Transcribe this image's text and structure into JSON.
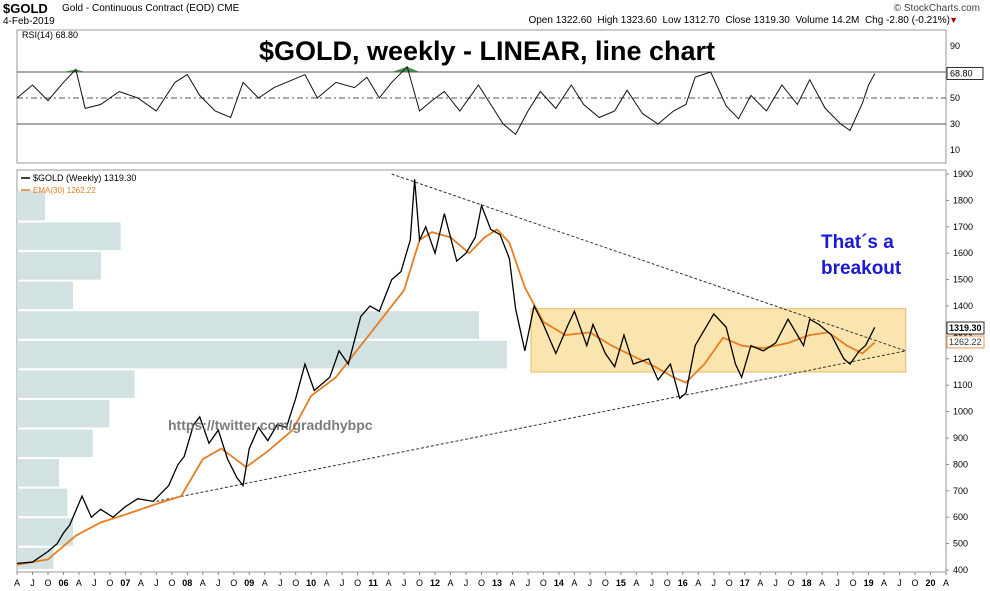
{
  "header": {
    "symbol": "$GOLD",
    "description": "Gold - Continuous Contract (EOD)",
    "exchange": "CME",
    "date": "4-Feb-2019",
    "brand": "© StockCharts.com",
    "open_label": "Open",
    "open": "1322.60",
    "high_label": "High",
    "high": "1323.60",
    "low_label": "Low",
    "low": "1312.70",
    "close_label": "Close",
    "close": "1319.30",
    "volume_label": "Volume",
    "volume": "14.2M",
    "chg_label": "Chg",
    "chg": "-2.80 (-0.21%)"
  },
  "chart_data": {
    "type": "line",
    "title": "$GOLD, weekly - LINEAR, line chart",
    "annotation_breakout": [
      "That´s a",
      "breakout"
    ],
    "watermark": "https://twitter.com/graddhybpc",
    "colors": {
      "price": "#000000",
      "ema": "#e67e22",
      "box": "#fbe3a6",
      "volume_by_price": "#d2e1e1",
      "breakout_text": "#1a1ad4",
      "rsi_fill": "#2e7d32",
      "trendline": "#333333"
    },
    "x_axis": {
      "months": [
        "A",
        "J",
        "O",
        "06",
        "A",
        "J",
        "O",
        "07",
        "A",
        "J",
        "O",
        "08",
        "A",
        "J",
        "O",
        "09",
        "A",
        "J",
        "O",
        "10",
        "A",
        "J",
        "O",
        "11",
        "A",
        "J",
        "O",
        "12",
        "A",
        "J",
        "O",
        "13",
        "A",
        "J",
        "O",
        "14",
        "A",
        "J",
        "O",
        "15",
        "A",
        "J",
        "O",
        "16",
        "A",
        "J",
        "O",
        "17",
        "A",
        "J",
        "O",
        "18",
        "A",
        "J",
        "O",
        "19",
        "A",
        "J",
        "O",
        "20",
        "A"
      ],
      "range": [
        2005.25,
        2020.25
      ]
    },
    "rsi": {
      "label": "RSI(14)",
      "value": "68.80",
      "ylim": [
        0,
        100
      ],
      "ticks": [
        "90",
        "70",
        "50",
        "30",
        "10"
      ],
      "reference_lines": [
        70,
        50,
        30
      ],
      "points": [
        [
          2005.25,
          50
        ],
        [
          2005.5,
          60
        ],
        [
          2005.75,
          48
        ],
        [
          2006.0,
          62
        ],
        [
          2006.2,
          72
        ],
        [
          2006.35,
          42
        ],
        [
          2006.6,
          45
        ],
        [
          2006.9,
          55
        ],
        [
          2007.2,
          50
        ],
        [
          2007.5,
          40
        ],
        [
          2007.8,
          62
        ],
        [
          2008.0,
          68
        ],
        [
          2008.2,
          52
        ],
        [
          2008.45,
          40
        ],
        [
          2008.7,
          35
        ],
        [
          2008.9,
          62
        ],
        [
          2009.15,
          50
        ],
        [
          2009.4,
          58
        ],
        [
          2009.7,
          64
        ],
        [
          2009.9,
          68
        ],
        [
          2010.1,
          50
        ],
        [
          2010.4,
          62
        ],
        [
          2010.7,
          58
        ],
        [
          2010.9,
          66
        ],
        [
          2011.1,
          50
        ],
        [
          2011.3,
          62
        ],
        [
          2011.55,
          74
        ],
        [
          2011.75,
          40
        ],
        [
          2011.95,
          48
        ],
        [
          2012.15,
          55
        ],
        [
          2012.4,
          40
        ],
        [
          2012.7,
          60
        ],
        [
          2012.9,
          45
        ],
        [
          2013.1,
          30
        ],
        [
          2013.3,
          22
        ],
        [
          2013.5,
          40
        ],
        [
          2013.7,
          55
        ],
        [
          2013.95,
          42
        ],
        [
          2014.2,
          60
        ],
        [
          2014.4,
          45
        ],
        [
          2014.65,
          35
        ],
        [
          2014.9,
          40
        ],
        [
          2015.1,
          56
        ],
        [
          2015.35,
          38
        ],
        [
          2015.6,
          30
        ],
        [
          2015.85,
          40
        ],
        [
          2016.05,
          45
        ],
        [
          2016.2,
          66
        ],
        [
          2016.45,
          70
        ],
        [
          2016.7,
          44
        ],
        [
          2016.9,
          34
        ],
        [
          2017.1,
          52
        ],
        [
          2017.35,
          40
        ],
        [
          2017.6,
          60
        ],
        [
          2017.85,
          45
        ],
        [
          2018.05,
          64
        ],
        [
          2018.3,
          42
        ],
        [
          2018.55,
          30
        ],
        [
          2018.7,
          25
        ],
        [
          2018.9,
          46
        ],
        [
          2019.0,
          60
        ],
        [
          2019.1,
          68.8
        ]
      ]
    },
    "price": {
      "series_label": "$GOLD (Weekly)",
      "value": "1319.30",
      "ema_label": "EMA(30)",
      "ema_value": "1262.22",
      "last_price": "1319.30",
      "last_ema": "1262.22",
      "ylim": [
        400,
        1900
      ],
      "ticks": [
        "1900",
        "1800",
        "1700",
        "1600",
        "1500",
        "1400",
        "1300",
        "1200",
        "1100",
        "1000",
        "900",
        "800",
        "700",
        "600",
        "500",
        "400"
      ],
      "price_points": [
        [
          2005.25,
          425
        ],
        [
          2005.5,
          430
        ],
        [
          2005.75,
          470
        ],
        [
          2005.9,
          500
        ],
        [
          2006.0,
          540
        ],
        [
          2006.1,
          570
        ],
        [
          2006.3,
          680
        ],
        [
          2006.45,
          600
        ],
        [
          2006.6,
          630
        ],
        [
          2006.8,
          600
        ],
        [
          2007.0,
          640
        ],
        [
          2007.2,
          670
        ],
        [
          2007.45,
          660
        ],
        [
          2007.7,
          720
        ],
        [
          2007.85,
          800
        ],
        [
          2007.95,
          830
        ],
        [
          2008.1,
          950
        ],
        [
          2008.2,
          980
        ],
        [
          2008.35,
          880
        ],
        [
          2008.5,
          930
        ],
        [
          2008.65,
          820
        ],
        [
          2008.8,
          750
        ],
        [
          2008.9,
          720
        ],
        [
          2009.0,
          860
        ],
        [
          2009.15,
          940
        ],
        [
          2009.3,
          890
        ],
        [
          2009.45,
          950
        ],
        [
          2009.6,
          940
        ],
        [
          2009.75,
          1050
        ],
        [
          2009.9,
          1180
        ],
        [
          2010.05,
          1080
        ],
        [
          2010.3,
          1130
        ],
        [
          2010.45,
          1230
        ],
        [
          2010.6,
          1180
        ],
        [
          2010.8,
          1360
        ],
        [
          2010.95,
          1400
        ],
        [
          2011.1,
          1380
        ],
        [
          2011.3,
          1500
        ],
        [
          2011.45,
          1530
        ],
        [
          2011.6,
          1650
        ],
        [
          2011.67,
          1880
        ],
        [
          2011.75,
          1650
        ],
        [
          2011.85,
          1700
        ],
        [
          2012.0,
          1600
        ],
        [
          2012.15,
          1750
        ],
        [
          2012.35,
          1570
        ],
        [
          2012.5,
          1600
        ],
        [
          2012.65,
          1660
        ],
        [
          2012.75,
          1780
        ],
        [
          2012.9,
          1690
        ],
        [
          2013.05,
          1670
        ],
        [
          2013.2,
          1580
        ],
        [
          2013.3,
          1390
        ],
        [
          2013.45,
          1230
        ],
        [
          2013.6,
          1400
        ],
        [
          2013.75,
          1330
        ],
        [
          2013.95,
          1220
        ],
        [
          2014.15,
          1330
        ],
        [
          2014.25,
          1380
        ],
        [
          2014.45,
          1250
        ],
        [
          2014.55,
          1330
        ],
        [
          2014.75,
          1220
        ],
        [
          2014.9,
          1170
        ],
        [
          2015.05,
          1290
        ],
        [
          2015.2,
          1180
        ],
        [
          2015.45,
          1200
        ],
        [
          2015.6,
          1120
        ],
        [
          2015.8,
          1180
        ],
        [
          2015.95,
          1050
        ],
        [
          2016.05,
          1070
        ],
        [
          2016.2,
          1250
        ],
        [
          2016.5,
          1370
        ],
        [
          2016.7,
          1320
        ],
        [
          2016.85,
          1180
        ],
        [
          2016.95,
          1130
        ],
        [
          2017.1,
          1250
        ],
        [
          2017.3,
          1230
        ],
        [
          2017.5,
          1260
        ],
        [
          2017.7,
          1350
        ],
        [
          2017.95,
          1250
        ],
        [
          2018.05,
          1350
        ],
        [
          2018.2,
          1330
        ],
        [
          2018.4,
          1290
        ],
        [
          2018.6,
          1200
        ],
        [
          2018.7,
          1180
        ],
        [
          2018.85,
          1230
        ],
        [
          2018.95,
          1250
        ],
        [
          2019.1,
          1319.3
        ]
      ],
      "ema_points": [
        [
          2005.25,
          420
        ],
        [
          2005.75,
          440
        ],
        [
          2006.2,
          530
        ],
        [
          2006.6,
          580
        ],
        [
          2007.0,
          610
        ],
        [
          2007.5,
          650
        ],
        [
          2007.9,
          680
        ],
        [
          2008.25,
          820
        ],
        [
          2008.55,
          860
        ],
        [
          2008.95,
          790
        ],
        [
          2009.3,
          850
        ],
        [
          2009.7,
          930
        ],
        [
          2010.0,
          1060
        ],
        [
          2010.4,
          1130
        ],
        [
          2010.8,
          1250
        ],
        [
          2011.2,
          1370
        ],
        [
          2011.5,
          1460
        ],
        [
          2011.75,
          1650
        ],
        [
          2011.95,
          1680
        ],
        [
          2012.25,
          1660
        ],
        [
          2012.55,
          1600
        ],
        [
          2012.8,
          1660
        ],
        [
          2013.0,
          1690
        ],
        [
          2013.2,
          1640
        ],
        [
          2013.45,
          1470
        ],
        [
          2013.75,
          1340
        ],
        [
          2014.1,
          1290
        ],
        [
          2014.5,
          1300
        ],
        [
          2014.85,
          1250
        ],
        [
          2015.2,
          1210
        ],
        [
          2015.55,
          1170
        ],
        [
          2015.85,
          1130
        ],
        [
          2016.05,
          1110
        ],
        [
          2016.35,
          1180
        ],
        [
          2016.65,
          1280
        ],
        [
          2016.95,
          1250
        ],
        [
          2017.3,
          1240
        ],
        [
          2017.7,
          1260
        ],
        [
          2018.05,
          1290
        ],
        [
          2018.35,
          1300
        ],
        [
          2018.65,
          1250
        ],
        [
          2018.9,
          1220
        ],
        [
          2019.1,
          1262.22
        ]
      ],
      "upper_trendline": [
        [
          2011.3,
          1900
        ],
        [
          2019.6,
          1230
        ]
      ],
      "lower_trendline": [
        [
          2007.5,
          660
        ],
        [
          2019.6,
          1230
        ]
      ],
      "consolidation_box": {
        "x": [
          2013.55,
          2019.6
        ],
        "y": [
          1150,
          1390
        ]
      },
      "volume_by_price": [
        [
          1720,
          1840,
          0.1
        ],
        [
          1608,
          1720,
          0.37
        ],
        [
          1496,
          1608,
          0.3
        ],
        [
          1384,
          1496,
          0.2
        ],
        [
          1272,
          1384,
          1.65
        ],
        [
          1160,
          1272,
          1.75
        ],
        [
          1048,
          1160,
          0.42
        ],
        [
          936,
          1048,
          0.33
        ],
        [
          824,
          936,
          0.27
        ],
        [
          712,
          824,
          0.15
        ],
        [
          600,
          712,
          0.18
        ],
        [
          488,
          600,
          0.2
        ],
        [
          400,
          488,
          0.13
        ]
      ]
    }
  }
}
